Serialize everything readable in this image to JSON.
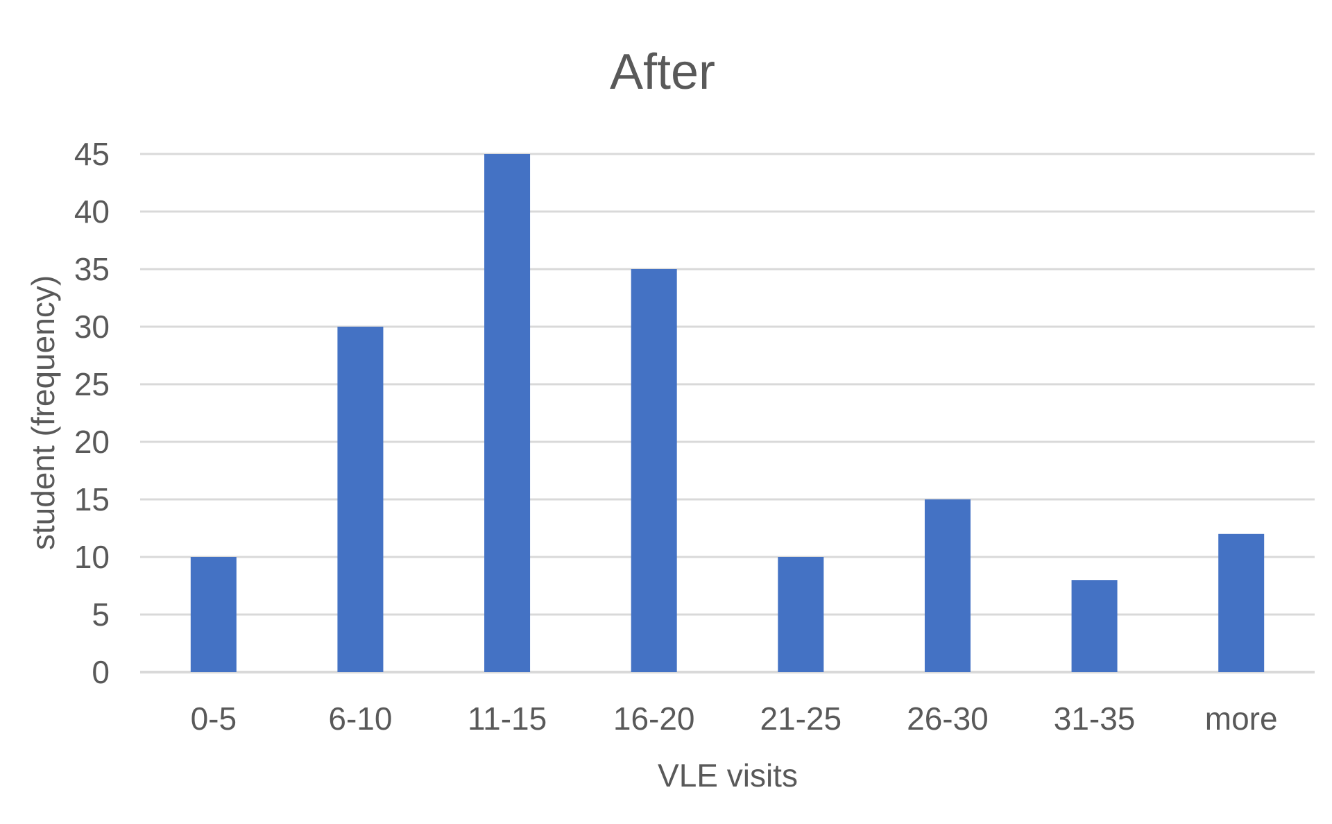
{
  "chart_data": {
    "type": "bar",
    "title": "After",
    "xlabel": "VLE visits",
    "ylabel": "student (frequency)",
    "categories": [
      "0-5",
      "6-10",
      "11-15",
      "16-20",
      "21-25",
      "26-30",
      "31-35",
      "more"
    ],
    "values": [
      10,
      30,
      45,
      35,
      10,
      15,
      8,
      12
    ],
    "ylim": [
      0,
      45
    ],
    "yticks": [
      0,
      5,
      10,
      15,
      20,
      25,
      30,
      35,
      40,
      45
    ],
    "grid": true,
    "legend": "none",
    "bar_color": "#4472C4"
  }
}
